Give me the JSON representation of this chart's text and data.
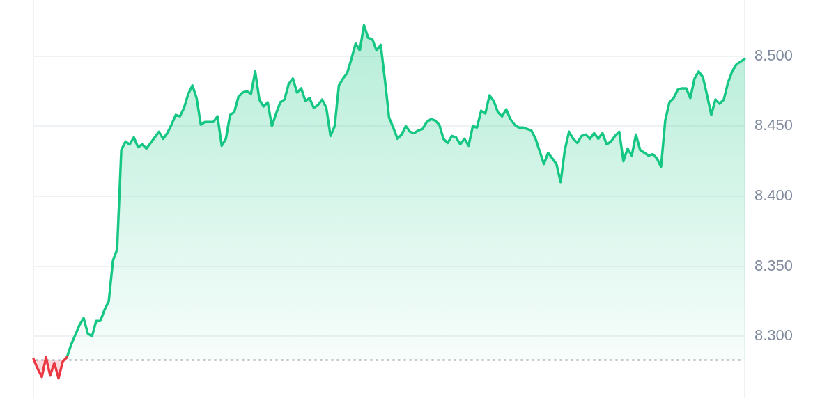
{
  "chart_data": {
    "type": "area",
    "categories": [
      null,
      null,
      null,
      null,
      null,
      null,
      null,
      null,
      null,
      null,
      null,
      null,
      null,
      null,
      null,
      null,
      null,
      null,
      null,
      null,
      null,
      null,
      null,
      null,
      null,
      null,
      null,
      null,
      null,
      null,
      null,
      null,
      null,
      null,
      null,
      null,
      null,
      null,
      null,
      null,
      null,
      null,
      null,
      null,
      null,
      null,
      null,
      null,
      null,
      null,
      null,
      null,
      null,
      null,
      null,
      null,
      null,
      null,
      null,
      null,
      null,
      null,
      null,
      null,
      null,
      null,
      null,
      null,
      null,
      null,
      null,
      null,
      null,
      null,
      null,
      null,
      null,
      null,
      null,
      null,
      null,
      null,
      null,
      null,
      null,
      null,
      null,
      null,
      null,
      null,
      null,
      null,
      null,
      null,
      null,
      null,
      null,
      null,
      null,
      null,
      null,
      null,
      null,
      null,
      null,
      null,
      null,
      null,
      null,
      null,
      null,
      null,
      null,
      null,
      null,
      null,
      null,
      null,
      null,
      null,
      null,
      null,
      null,
      null,
      null,
      null,
      null,
      null,
      null,
      null,
      null,
      null,
      null,
      null,
      null,
      null,
      null,
      null,
      null,
      null,
      null,
      null,
      null,
      null,
      null,
      null,
      null,
      null,
      null,
      null,
      null,
      null,
      null,
      null,
      null,
      null,
      null,
      null,
      null,
      null,
      null,
      null,
      null,
      null,
      null,
      null,
      null,
      null,
      null,
      null,
      null
    ],
    "series": [
      {
        "color": "#ea3943",
        "values": [
          8.284,
          8.277,
          8.271,
          8.285,
          8.272,
          8.281,
          8.27,
          8.282,
          8.285,
          null,
          null,
          null,
          null,
          null,
          null,
          null,
          null,
          null,
          null,
          null,
          null,
          null,
          null,
          null,
          null,
          null,
          null,
          null,
          null,
          null,
          null,
          null,
          null,
          null,
          null,
          null,
          null,
          null,
          null,
          null,
          null,
          null,
          null,
          null,
          null,
          null,
          null,
          null,
          null,
          null,
          null,
          null,
          null,
          null,
          null,
          null,
          null,
          null,
          null,
          null,
          null,
          null,
          null,
          null,
          null,
          null,
          null,
          null,
          null,
          null,
          null,
          null,
          null,
          null,
          null,
          null,
          null,
          null,
          null,
          null,
          null,
          null,
          null,
          null,
          null,
          null,
          null,
          null,
          null,
          null,
          null,
          null,
          null,
          null,
          null,
          null,
          null,
          null,
          null,
          null,
          null,
          null,
          null,
          null,
          null,
          null,
          null,
          null,
          null,
          null,
          null,
          null,
          null,
          null,
          null,
          null,
          null,
          null,
          null,
          null,
          null,
          null,
          null,
          null,
          null,
          null,
          null,
          null,
          null,
          null,
          null,
          null,
          null,
          null,
          null,
          null,
          null,
          null,
          null,
          null,
          null,
          null,
          null,
          null,
          null,
          null,
          null,
          null,
          null,
          null,
          null,
          null,
          null,
          null,
          null,
          null,
          null,
          null,
          null,
          null,
          null,
          null,
          null,
          null,
          null,
          null,
          null,
          null,
          null,
          null,
          null
        ]
      },
      {
        "color": "#16c784",
        "values": [
          null,
          null,
          null,
          null,
          null,
          null,
          null,
          null,
          8.285,
          8.294,
          8.301,
          8.308,
          8.313,
          8.302,
          8.3,
          8.311,
          8.311,
          8.319,
          8.325,
          8.354,
          8.362,
          8.433,
          8.439,
          8.437,
          8.442,
          8.435,
          8.437,
          8.434,
          8.438,
          8.442,
          8.446,
          8.441,
          8.445,
          8.451,
          8.458,
          8.457,
          8.463,
          8.473,
          8.479,
          8.47,
          8.451,
          8.453,
          8.453,
          8.453,
          8.457,
          8.436,
          8.441,
          8.458,
          8.46,
          8.471,
          8.474,
          8.475,
          8.473,
          8.489,
          8.469,
          8.464,
          8.467,
          8.45,
          8.459,
          8.467,
          8.469,
          8.48,
          8.484,
          8.474,
          8.477,
          8.468,
          8.47,
          8.463,
          8.465,
          8.469,
          8.463,
          8.443,
          8.45,
          8.479,
          8.484,
          8.488,
          8.498,
          8.509,
          8.504,
          8.522,
          8.513,
          8.512,
          8.504,
          8.508,
          8.483,
          8.456,
          8.449,
          8.441,
          8.444,
          8.45,
          8.446,
          8.445,
          8.447,
          8.448,
          8.453,
          8.455,
          8.454,
          8.451,
          8.441,
          8.438,
          8.443,
          8.442,
          8.437,
          8.441,
          8.436,
          8.45,
          8.449,
          8.461,
          8.459,
          8.472,
          8.468,
          8.46,
          8.457,
          8.462,
          8.455,
          8.451,
          8.449,
          8.449,
          8.448,
          8.447,
          8.441,
          8.432,
          8.423,
          8.431,
          8.427,
          8.423,
          8.41,
          8.433,
          8.446,
          8.441,
          8.438,
          8.443,
          8.444,
          8.441,
          8.445,
          8.441,
          8.445,
          8.437,
          8.439,
          8.443,
          8.446,
          8.425,
          8.434,
          8.429,
          8.444,
          8.433,
          8.431,
          8.429,
          8.43,
          8.427,
          8.421,
          8.454,
          8.467,
          8.47,
          8.476,
          8.477,
          8.477,
          8.47,
          8.484,
          8.489,
          8.485,
          8.472,
          8.458,
          8.469,
          8.466,
          8.469,
          8.481,
          8.489,
          8.494,
          8.496,
          8.498
        ]
      }
    ],
    "ylim": [
      8.256,
      8.54
    ],
    "yticks": [
      {
        "value": 8.3,
        "label": "8.300"
      },
      {
        "value": 8.35,
        "label": "8.350"
      },
      {
        "value": 8.4,
        "label": "8.400"
      },
      {
        "value": 8.45,
        "label": "8.450"
      },
      {
        "value": 8.5,
        "label": "8.500"
      }
    ],
    "grid": "y",
    "tick_labels": "y",
    "marker": "none",
    "ref_lines": [
      {
        "axis": "y",
        "value": 8.283,
        "line_style": "dotted",
        "color": "#8a919e"
      }
    ]
  }
}
